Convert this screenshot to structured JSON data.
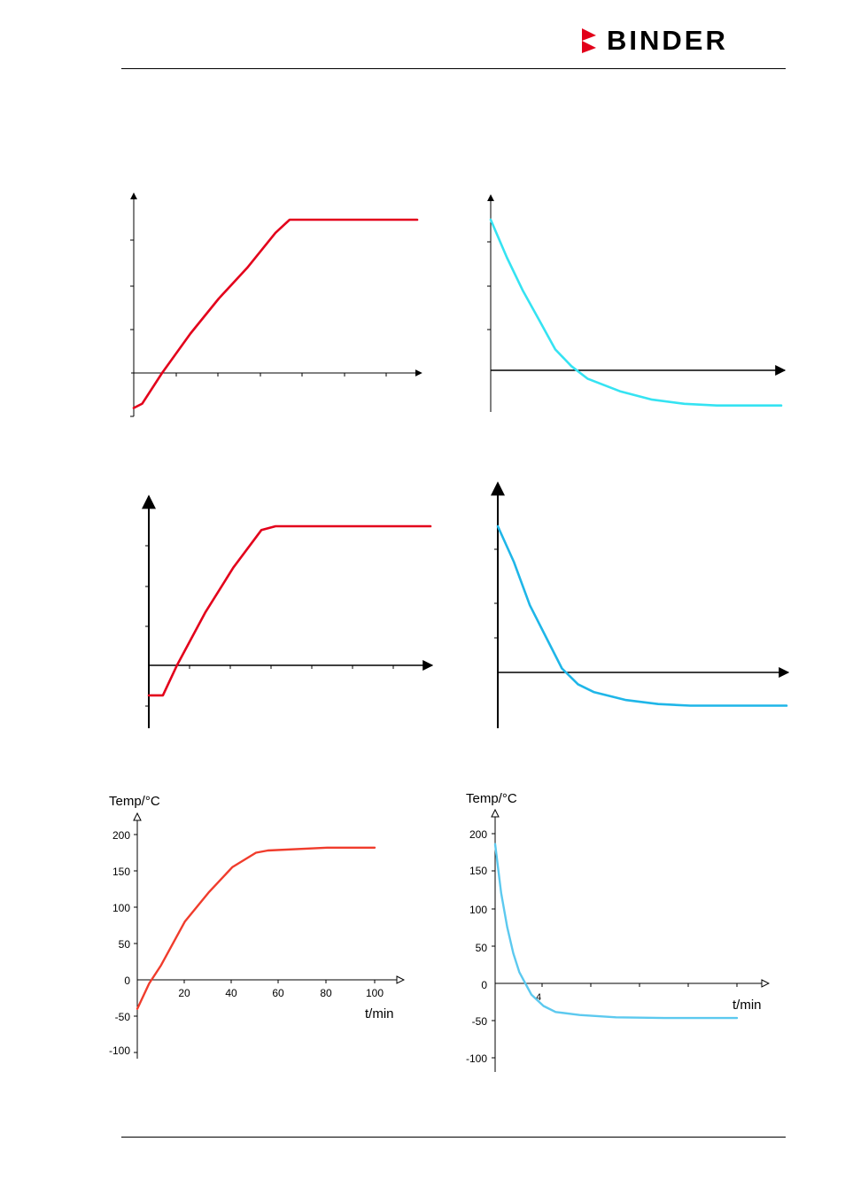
{
  "header": {
    "brand": "BINDER",
    "brand_color": "#e2001a"
  },
  "chart_data": [
    {
      "type": "line",
      "title": "",
      "xlabel": "",
      "ylabel": "",
      "grid": false,
      "color": "#e3001b",
      "series": [
        {
          "x": [
            0,
            3,
            10,
            20,
            30,
            40,
            50,
            55,
            100
          ],
          "values": [
            -40,
            -35,
            0,
            45,
            85,
            120,
            160,
            175,
            175
          ]
        }
      ]
    },
    {
      "type": "line",
      "title": "",
      "xlabel": "",
      "ylabel": "",
      "grid": false,
      "color": "#35e3f2",
      "series": [
        {
          "x": [
            0,
            1,
            2,
            3,
            4,
            5,
            6,
            8,
            10,
            12,
            14,
            18
          ],
          "values": [
            180,
            135,
            95,
            60,
            25,
            5,
            -10,
            -25,
            -35,
            -40,
            -42,
            -42
          ]
        }
      ]
    },
    {
      "type": "line",
      "title": "",
      "xlabel": "",
      "ylabel": "",
      "grid": false,
      "color": "#e3001b",
      "series": [
        {
          "x": [
            0,
            5,
            10,
            20,
            30,
            40,
            45,
            100
          ],
          "values": [
            -40,
            -40,
            0,
            70,
            130,
            180,
            185,
            185
          ]
        }
      ]
    },
    {
      "type": "line",
      "title": "",
      "xlabel": "",
      "ylabel": "",
      "grid": false,
      "color": "#1fb6e8",
      "series": [
        {
          "x": [
            0,
            1,
            2,
            3,
            4,
            5,
            6,
            8,
            10,
            12,
            14,
            18
          ],
          "values": [
            185,
            140,
            85,
            45,
            5,
            -15,
            -25,
            -35,
            -40,
            -42,
            -42,
            -42
          ]
        }
      ]
    },
    {
      "type": "line",
      "title": "",
      "xlabel": "t/min",
      "ylabel": "Temp/°C",
      "xticks": [
        "20",
        "40",
        "60",
        "80",
        "100"
      ],
      "yticks": [
        "200",
        "150",
        "100",
        "50",
        "0",
        "-50",
        "-100"
      ],
      "xlim": [
        0,
        110
      ],
      "ylim": [
        -100,
        200
      ],
      "grid": false,
      "color": "#f03c2c",
      "series": [
        {
          "x": [
            0,
            5,
            10,
            20,
            30,
            40,
            50,
            55,
            80,
            100
          ],
          "values": [
            -40,
            -5,
            20,
            80,
            120,
            155,
            175,
            178,
            182,
            182
          ]
        }
      ]
    },
    {
      "type": "line",
      "title": "",
      "xlabel": "t/min",
      "ylabel": "Temp/°C",
      "xticks": [
        "4"
      ],
      "yticks": [
        "200",
        "150",
        "100",
        "50",
        "0",
        "-50",
        "-100"
      ],
      "xlim": [
        0,
        24
      ],
      "ylim": [
        -100,
        200
      ],
      "grid": false,
      "color": "#5cc9ef",
      "series": [
        {
          "x": [
            0,
            0.5,
            1,
            1.5,
            2,
            2.5,
            3,
            4,
            5,
            7,
            10,
            14,
            20
          ],
          "values": [
            185,
            120,
            75,
            40,
            15,
            0,
            -15,
            -30,
            -38,
            -42,
            -45,
            -46,
            -46
          ]
        }
      ]
    }
  ]
}
